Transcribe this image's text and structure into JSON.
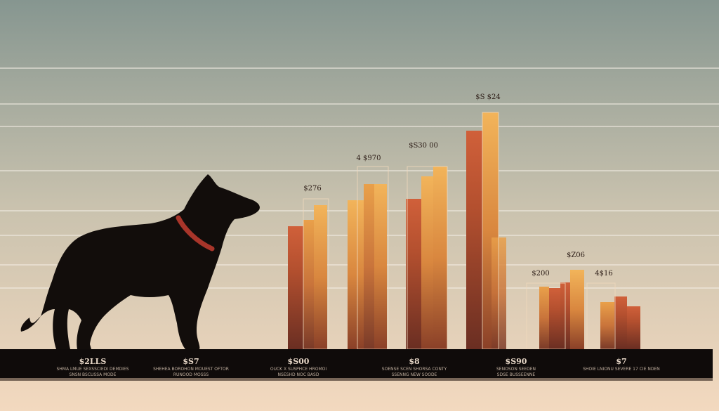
{
  "header_labels": [
    "$S $24",
    "$S30 00",
    "4 $970",
    "$276",
    "$Z06",
    "$200",
    "4$16"
  ],
  "base_labels": [
    {
      "value": "$2LLS",
      "caption": [
        "SHMA LMUE SEXSSCIEDI DEMDIES",
        "SNSN BSCUSSA MODE"
      ]
    },
    {
      "value": "$S7",
      "caption": [
        "SHEHEA BOROHON MOUEST OFTOR",
        "RUNOOD MOSSS"
      ]
    },
    {
      "value": "$S00",
      "caption": [
        "OUCK X SUSPHCE HROMOI",
        "NSESHD NOC BASD"
      ]
    },
    {
      "value": "$8",
      "caption": [
        "SOENSE SCEN SHORSA CONTY",
        "SSENNG NEW SOODE"
      ]
    },
    {
      "value": "$S90",
      "caption": [
        "SENOSON SEEDEN",
        "SDSE BUSSEENNE"
      ]
    },
    {
      "value": "$7",
      "caption": [
        "SHOIE LNIONU SEVERE 17 CIE NDEN"
      ]
    }
  ]
}
